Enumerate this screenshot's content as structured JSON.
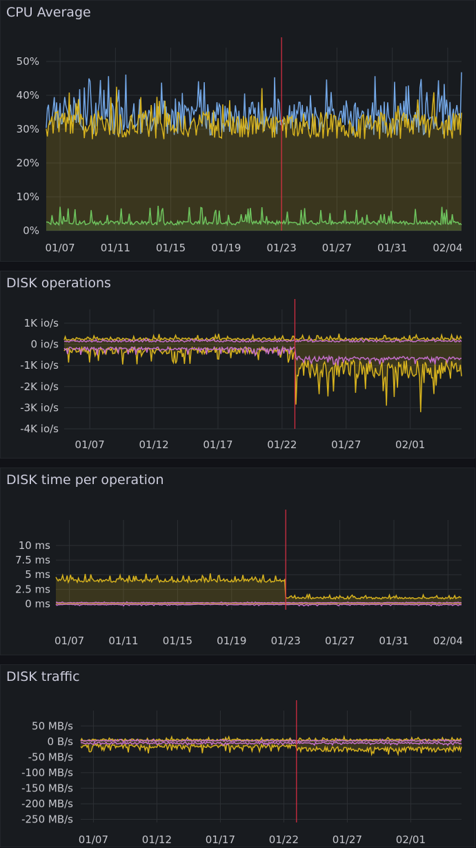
{
  "panels": [
    {
      "title": "CPU Average",
      "chart_data": {
        "type": "area",
        "title": "CPU Average",
        "x_ticks": [
          "01/07",
          "01/11",
          "01/15",
          "01/19",
          "01/23",
          "01/27",
          "01/31",
          "02/04"
        ],
        "y_ticks": [
          "50%",
          "40%",
          "30%",
          "20%",
          "10%",
          "0%"
        ],
        "ylim": [
          0,
          50
        ],
        "xlim": [
          "01/06",
          "02/05"
        ],
        "marker": "01/23",
        "grid": true,
        "series": [
          {
            "color": "#73a7e6",
            "fill": false,
            "base": 33,
            "amp": 5,
            "spike": 10,
            "seed": 3
          },
          {
            "color": "#d7b31e",
            "fill": true,
            "base": 31,
            "amp": 4,
            "spike": 8,
            "seed": 5
          },
          {
            "color": "#6ec45e",
            "fill": true,
            "base": 2.3,
            "amp": 0.6,
            "spike": 5,
            "seed": 9
          }
        ]
      }
    },
    {
      "title": "DISK operations",
      "chart_data": {
        "type": "area",
        "title": "DISK operations",
        "x_ticks": [
          "01/07",
          "01/12",
          "01/17",
          "01/22",
          "01/27",
          "02/01"
        ],
        "y_ticks": [
          "1K io/s",
          "0 io/s",
          "-1K io/s",
          "-2K io/s",
          "-3K io/s",
          "-4K io/s"
        ],
        "ylim": [
          -4000,
          1000
        ],
        "xlim": [
          "01/05",
          "02/05"
        ],
        "marker": "01/23",
        "grid": true,
        "series": [
          {
            "color": "#d7b31e",
            "fill": true,
            "base": 250,
            "amp": 60,
            "spike": 200,
            "seed": 2
          },
          {
            "color": "#c46fcb",
            "fill": false,
            "base": 150,
            "amp": 40,
            "spike": 80,
            "seed": 4
          },
          {
            "color": "#d7b31e",
            "fill": true,
            "base": -300,
            "amp": 150,
            "spike": -700,
            "seed": 6,
            "after": -1200,
            "after_amp": 450,
            "after_spike": -1800
          },
          {
            "color": "#c46fcb",
            "fill": false,
            "base": -200,
            "amp": 70,
            "spike": -300,
            "seed": 8,
            "after": -650,
            "after_amp": 80,
            "after_spike": -300
          }
        ]
      }
    },
    {
      "title": "DISK time per operation",
      "chart_data": {
        "type": "area",
        "title": "DISK time per operation",
        "x_ticks": [
          "01/07",
          "01/11",
          "01/15",
          "01/19",
          "01/23",
          "01/27",
          "01/31",
          "02/04"
        ],
        "y_ticks": [
          "10 ms",
          "7.5 ms",
          "5 ms",
          "2.5 ms",
          "0 ms"
        ],
        "ylim": [
          -1,
          12
        ],
        "xlim": [
          "01/06",
          "02/05"
        ],
        "marker": "01/23",
        "grid": true,
        "series": [
          {
            "color": "#d7b31e",
            "fill": true,
            "base": 4,
            "amp": 0.3,
            "spike": 1.2,
            "seed": 1,
            "after": 1,
            "after_amp": 0.15,
            "after_spike": 0.6
          },
          {
            "color": "#c46fcb",
            "fill": false,
            "base": 0.2,
            "amp": 0.05,
            "spike": 0.1,
            "seed": 7
          },
          {
            "color": "#c46fcb",
            "fill": false,
            "base": -0.1,
            "amp": 0.05,
            "spike": -0.2,
            "seed": 11
          },
          {
            "color": "#b0843a",
            "fill": false,
            "base": 0.05,
            "amp": 0.02,
            "spike": 0.05,
            "seed": 13
          }
        ]
      }
    },
    {
      "title": "DISK traffic",
      "chart_data": {
        "type": "area",
        "title": "DISK traffic",
        "x_ticks": [
          "01/07",
          "01/12",
          "01/17",
          "01/22",
          "01/27",
          "02/01"
        ],
        "y_ticks": [
          "50 MB/s",
          "0 B/s",
          "-50 MB/s",
          "-100 MB/s",
          "-150 MB/s",
          "-200 MB/s",
          "-250 MB/s"
        ],
        "ylim": [
          -260,
          55
        ],
        "xlim": [
          "01/06",
          "02/05"
        ],
        "marker": "01/23",
        "grid": true,
        "series": [
          {
            "color": "#d7b31e",
            "fill": true,
            "base": 5,
            "amp": 3,
            "spike": 8,
            "seed": 2
          },
          {
            "color": "#c46fcb",
            "fill": false,
            "base": 2,
            "amp": 2,
            "spike": 4,
            "seed": 3
          },
          {
            "color": "#d7b31e",
            "fill": true,
            "base": -15,
            "amp": 6,
            "spike": -20,
            "seed": 5,
            "after": -25,
            "after_amp": 8,
            "after_spike": -15
          },
          {
            "color": "#c46fcb",
            "fill": false,
            "base": -5,
            "amp": 3,
            "spike": -5,
            "seed": 9
          }
        ]
      }
    }
  ]
}
